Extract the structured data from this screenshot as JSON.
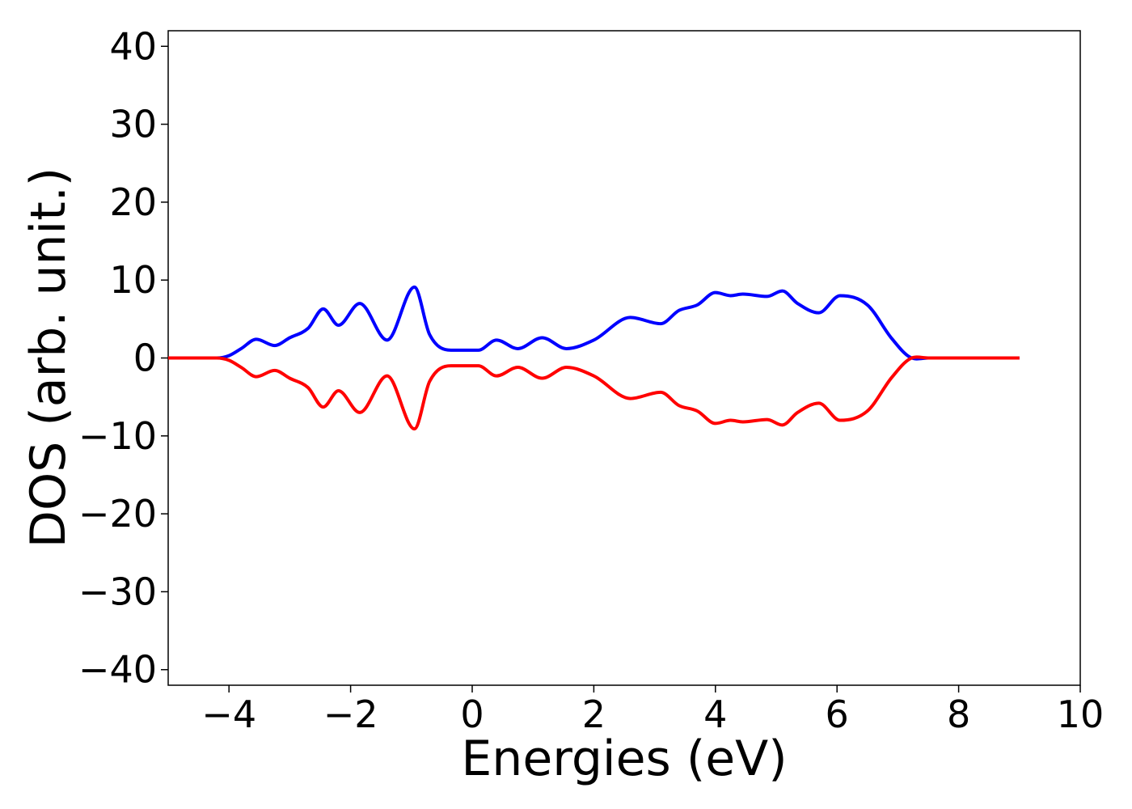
{
  "chart_data": {
    "type": "line",
    "title": "",
    "xlabel": "Energies (eV)",
    "ylabel": "DOS (arb. unit.)",
    "xlim": [
      -5,
      10
    ],
    "ylim": [
      -42,
      42
    ],
    "xticks": [
      -4,
      -2,
      0,
      2,
      4,
      6,
      8,
      10
    ],
    "yticks": [
      -40,
      -30,
      -20,
      -10,
      0,
      10,
      20,
      30,
      40
    ],
    "xtick_labels": [
      "−4",
      "−2",
      "0",
      "2",
      "4",
      "6",
      "8",
      "10"
    ],
    "ytick_labels": [
      "−40",
      "−30",
      "−20",
      "−10",
      "0",
      "10",
      "20",
      "30",
      "40"
    ],
    "grid": false,
    "legend": "none",
    "colors": [
      "#0000ff",
      "#ff0000"
    ],
    "x": [
      -5.0,
      -4.2,
      -4.0,
      -3.8,
      -3.55,
      -3.25,
      -3.0,
      -2.7,
      -2.45,
      -2.2,
      -1.85,
      -1.4,
      -0.95,
      -0.7,
      -0.35,
      0.1,
      0.4,
      0.75,
      1.15,
      1.55,
      2.0,
      2.6,
      3.1,
      3.4,
      3.7,
      4.0,
      4.25,
      4.45,
      4.85,
      5.1,
      5.35,
      5.7,
      6.05,
      6.5,
      6.9,
      7.2,
      7.5,
      9.0
    ],
    "series": [
      {
        "values": [
          0.0,
          0.0,
          0.3,
          1.2,
          2.4,
          1.6,
          2.6,
          3.8,
          6.3,
          4.2,
          7.0,
          2.3,
          9.1,
          3.0,
          1.0,
          1.0,
          2.3,
          1.2,
          2.6,
          1.2,
          2.3,
          5.2,
          4.4,
          6.1,
          6.8,
          8.4,
          8.0,
          8.2,
          7.9,
          8.6,
          7.0,
          5.8,
          8.0,
          6.8,
          2.5,
          0.1,
          0.0,
          0.0
        ]
      },
      {
        "values": [
          0.0,
          0.0,
          -0.3,
          -1.2,
          -2.4,
          -1.6,
          -2.6,
          -3.8,
          -6.3,
          -4.2,
          -7.0,
          -2.3,
          -9.1,
          -3.0,
          -1.0,
          -1.0,
          -2.3,
          -1.2,
          -2.6,
          -1.2,
          -2.3,
          -5.2,
          -4.4,
          -6.1,
          -6.8,
          -8.4,
          -8.0,
          -8.2,
          -7.9,
          -8.6,
          -7.0,
          -5.8,
          -8.0,
          -6.8,
          -2.5,
          -0.1,
          0.0,
          0.0
        ]
      }
    ]
  }
}
